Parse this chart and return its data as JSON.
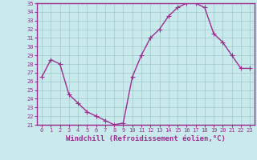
{
  "x": [
    0,
    1,
    2,
    3,
    4,
    5,
    6,
    7,
    8,
    9,
    10,
    11,
    12,
    13,
    14,
    15,
    16,
    17,
    18,
    19,
    20,
    21,
    22,
    23
  ],
  "y": [
    26.5,
    28.5,
    28.0,
    24.5,
    23.5,
    22.5,
    22.0,
    21.5,
    21.0,
    21.2,
    26.5,
    29.0,
    31.0,
    32.0,
    33.5,
    34.5,
    35.0,
    35.0,
    34.5,
    31.5,
    30.5,
    29.0,
    27.5,
    27.5
  ],
  "line_color": "#9b2d8e",
  "marker": "+",
  "marker_size": 4,
  "linewidth": 1.0,
  "bg_color": "#c8eaec",
  "grid_color": "#a0c8cc",
  "xlabel": "Windchill (Refroidissement éolien,°C)",
  "ylabel": "",
  "ylim": [
    21,
    35
  ],
  "xlim": [
    -0.5,
    23.5
  ],
  "yticks": [
    21,
    22,
    23,
    24,
    25,
    26,
    27,
    28,
    29,
    30,
    31,
    32,
    33,
    34,
    35
  ],
  "xticks": [
    0,
    1,
    2,
    3,
    4,
    5,
    6,
    7,
    8,
    9,
    10,
    11,
    12,
    13,
    14,
    15,
    16,
    17,
    18,
    19,
    20,
    21,
    22,
    23
  ],
  "tick_color": "#9b2d8e",
  "tick_fontsize": 5,
  "xlabel_fontsize": 6.5,
  "spine_color": "#9b2d8e",
  "border_color": "#9b2d8e"
}
